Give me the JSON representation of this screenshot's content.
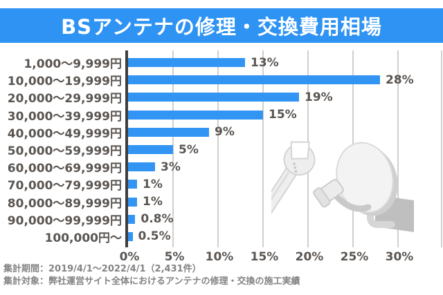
{
  "title": "BSアンテナの修理・交換費用相場",
  "chart_data": {
    "type": "bar",
    "orientation": "horizontal",
    "title": "BSアンテナの修理・交換費用相場",
    "categories": [
      "1,000〜9,999円",
      "10,000〜19,999円",
      "20,000〜29,999円",
      "30,000〜39,999円",
      "40,000〜49,999円",
      "50,000〜59,999円",
      "60,000〜69,999円",
      "70,000〜79,999円",
      "80,000〜89,999円",
      "90,000〜99,999円",
      "100,000円〜"
    ],
    "values": [
      13,
      28,
      19,
      15,
      9,
      5,
      3,
      1,
      1,
      0.8,
      0.5
    ],
    "value_labels": [
      "13%",
      "28%",
      "19%",
      "15%",
      "9%",
      "5%",
      "3%",
      "1%",
      "1%",
      "0.8%",
      "0.5%"
    ],
    "x_ticks": [
      "0%",
      "5%",
      "10%",
      "15%",
      "20%",
      "25%",
      "30%"
    ],
    "x_tick_values": [
      0,
      5,
      10,
      15,
      20,
      25,
      30
    ],
    "xlim": [
      0,
      35
    ],
    "grid": true,
    "legend": "none",
    "bar_color": "#3295f4"
  },
  "footer": {
    "line1": "集計期間：2019/4/1〜2022/4/1（2,431件）",
    "line2": "集計対象：弊社運営サイト全体におけるアンテナの修理・交換の施工実績"
  },
  "colors": {
    "banner_bg": "#2e93f2",
    "banner_text": "#ffffff",
    "bar": "#3295f4",
    "label_text": "#5a5551",
    "grid_line": "#cfcfcf",
    "axis_line": "#3d3d3d",
    "footer_text": "#838383",
    "illustration_light": "#efefef",
    "illustration_mid": "#d6d6d6",
    "illustration_dark": "#bfbfbf"
  },
  "illustration": {
    "name": "satellite-dish-and-wrench"
  }
}
